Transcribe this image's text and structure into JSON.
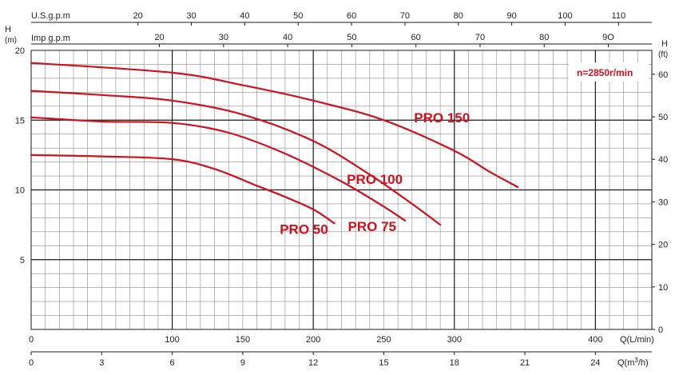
{
  "chart_data": {
    "type": "line",
    "title": "",
    "annotation": "n=2850r/min",
    "colors": {
      "curve": "#d0101c",
      "grid_minor": "#8c8c8c",
      "grid_major": "#1a1a1a",
      "text": "#222222"
    },
    "grid": true,
    "x_axes": {
      "q_lmin": {
        "label": "Q(L/min)",
        "ticks": [
          0,
          100,
          150,
          200,
          250,
          300,
          400
        ],
        "range": [
          0,
          430
        ]
      },
      "q_m3h": {
        "label": "Q(m³/h)",
        "label_main": "Q(m",
        "label_sup": "3",
        "label_tail": "/h)",
        "ticks": [
          0,
          3,
          6,
          9,
          12,
          15,
          18,
          21,
          24
        ]
      },
      "us_gpm": {
        "label": "U.S.g.p.m",
        "ticks": [
          20,
          30,
          40,
          50,
          60,
          70,
          80,
          90,
          100,
          110
        ]
      },
      "imp_gpm": {
        "label": "Imp g.p.m",
        "ticks": [
          "20",
          "30",
          "40",
          "50",
          "60",
          "70",
          "80",
          "9O"
        ]
      }
    },
    "y_axes": {
      "left": {
        "label_top": "H",
        "label_bottom": "(m)",
        "ticks": [
          5,
          10,
          15,
          20
        ],
        "range": [
          0,
          20
        ]
      },
      "right": {
        "label_top": "H",
        "label_bottom": "(ft)",
        "ticks": [
          0,
          10,
          20,
          30,
          40,
          50,
          60
        ]
      }
    },
    "x_label_ticks_lmin": [
      "0",
      "100",
      "150",
      "200",
      "250",
      "300",
      "400"
    ],
    "series": [
      {
        "name": "PRO 50",
        "x": [
          0,
          50,
          100,
          130,
          160,
          180,
          200,
          215
        ],
        "y": [
          12.5,
          12.4,
          12.2,
          11.5,
          10.3,
          9.5,
          8.6,
          7.6
        ]
      },
      {
        "name": "PRO 75",
        "x": [
          0,
          50,
          100,
          140,
          180,
          220,
          250,
          265
        ],
        "y": [
          15.2,
          14.9,
          14.8,
          14.1,
          12.6,
          10.6,
          8.8,
          7.8
        ]
      },
      {
        "name": "PRO 100",
        "x": [
          0,
          50,
          100,
          150,
          200,
          240,
          270,
          290
        ],
        "y": [
          17.1,
          16.8,
          16.4,
          15.4,
          13.5,
          11.1,
          9.0,
          7.5
        ]
      },
      {
        "name": "PRO 150",
        "x": [
          0,
          100,
          150,
          200,
          250,
          300,
          325,
          345
        ],
        "y": [
          19.1,
          18.4,
          17.5,
          16.4,
          15.0,
          12.8,
          11.3,
          10.2
        ]
      }
    ]
  }
}
